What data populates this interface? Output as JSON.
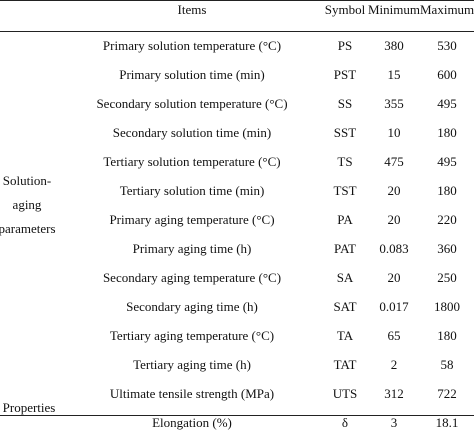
{
  "table": {
    "headers": {
      "group": "",
      "items": "Items",
      "symbol": "Symbol",
      "minimum": "Minimum",
      "maximum": "Maximum"
    },
    "groups": {
      "solution_aging": [
        "Solution-",
        "aging",
        "parameters"
      ],
      "properties": "Properties"
    },
    "rows": [
      {
        "item": "Primary solution temperature (°C)",
        "symbol": "PS",
        "min": "380",
        "max": "530"
      },
      {
        "item": "Primary solution time (min)",
        "symbol": "PST",
        "min": "15",
        "max": "600"
      },
      {
        "item": "Secondary solution temperature (°C)",
        "symbol": "SS",
        "min": "355",
        "max": "495"
      },
      {
        "item": "Secondary solution time (min)",
        "symbol": "SST",
        "min": "10",
        "max": "180"
      },
      {
        "item": "Tertiary solution temperature (°C)",
        "symbol": "TS",
        "min": "475",
        "max": "495"
      },
      {
        "item": "Tertiary solution time (min)",
        "symbol": "TST",
        "min": "20",
        "max": "180"
      },
      {
        "item": "Primary aging temperature (°C)",
        "symbol": "PA",
        "min": "20",
        "max": "220"
      },
      {
        "item": "Primary aging time (h)",
        "symbol": "PAT",
        "min": "0.083",
        "max": "360"
      },
      {
        "item": "Secondary aging temperature (°C)",
        "symbol": "SA",
        "min": "20",
        "max": "250"
      },
      {
        "item": "Secondary aging time (h)",
        "symbol": "SAT",
        "min": "0.017",
        "max": "1800"
      },
      {
        "item": "Tertiary aging temperature (°C)",
        "symbol": "TA",
        "min": "65",
        "max": "180"
      },
      {
        "item": "Tertiary aging time (h)",
        "symbol": "TAT",
        "min": "2",
        "max": "58"
      },
      {
        "item": "Ultimate tensile strength (MPa)",
        "symbol": "UTS",
        "min": "312",
        "max": "722"
      },
      {
        "item": "Elongation (%)",
        "symbol": "δ",
        "min": "3",
        "max": "18.1"
      }
    ]
  }
}
